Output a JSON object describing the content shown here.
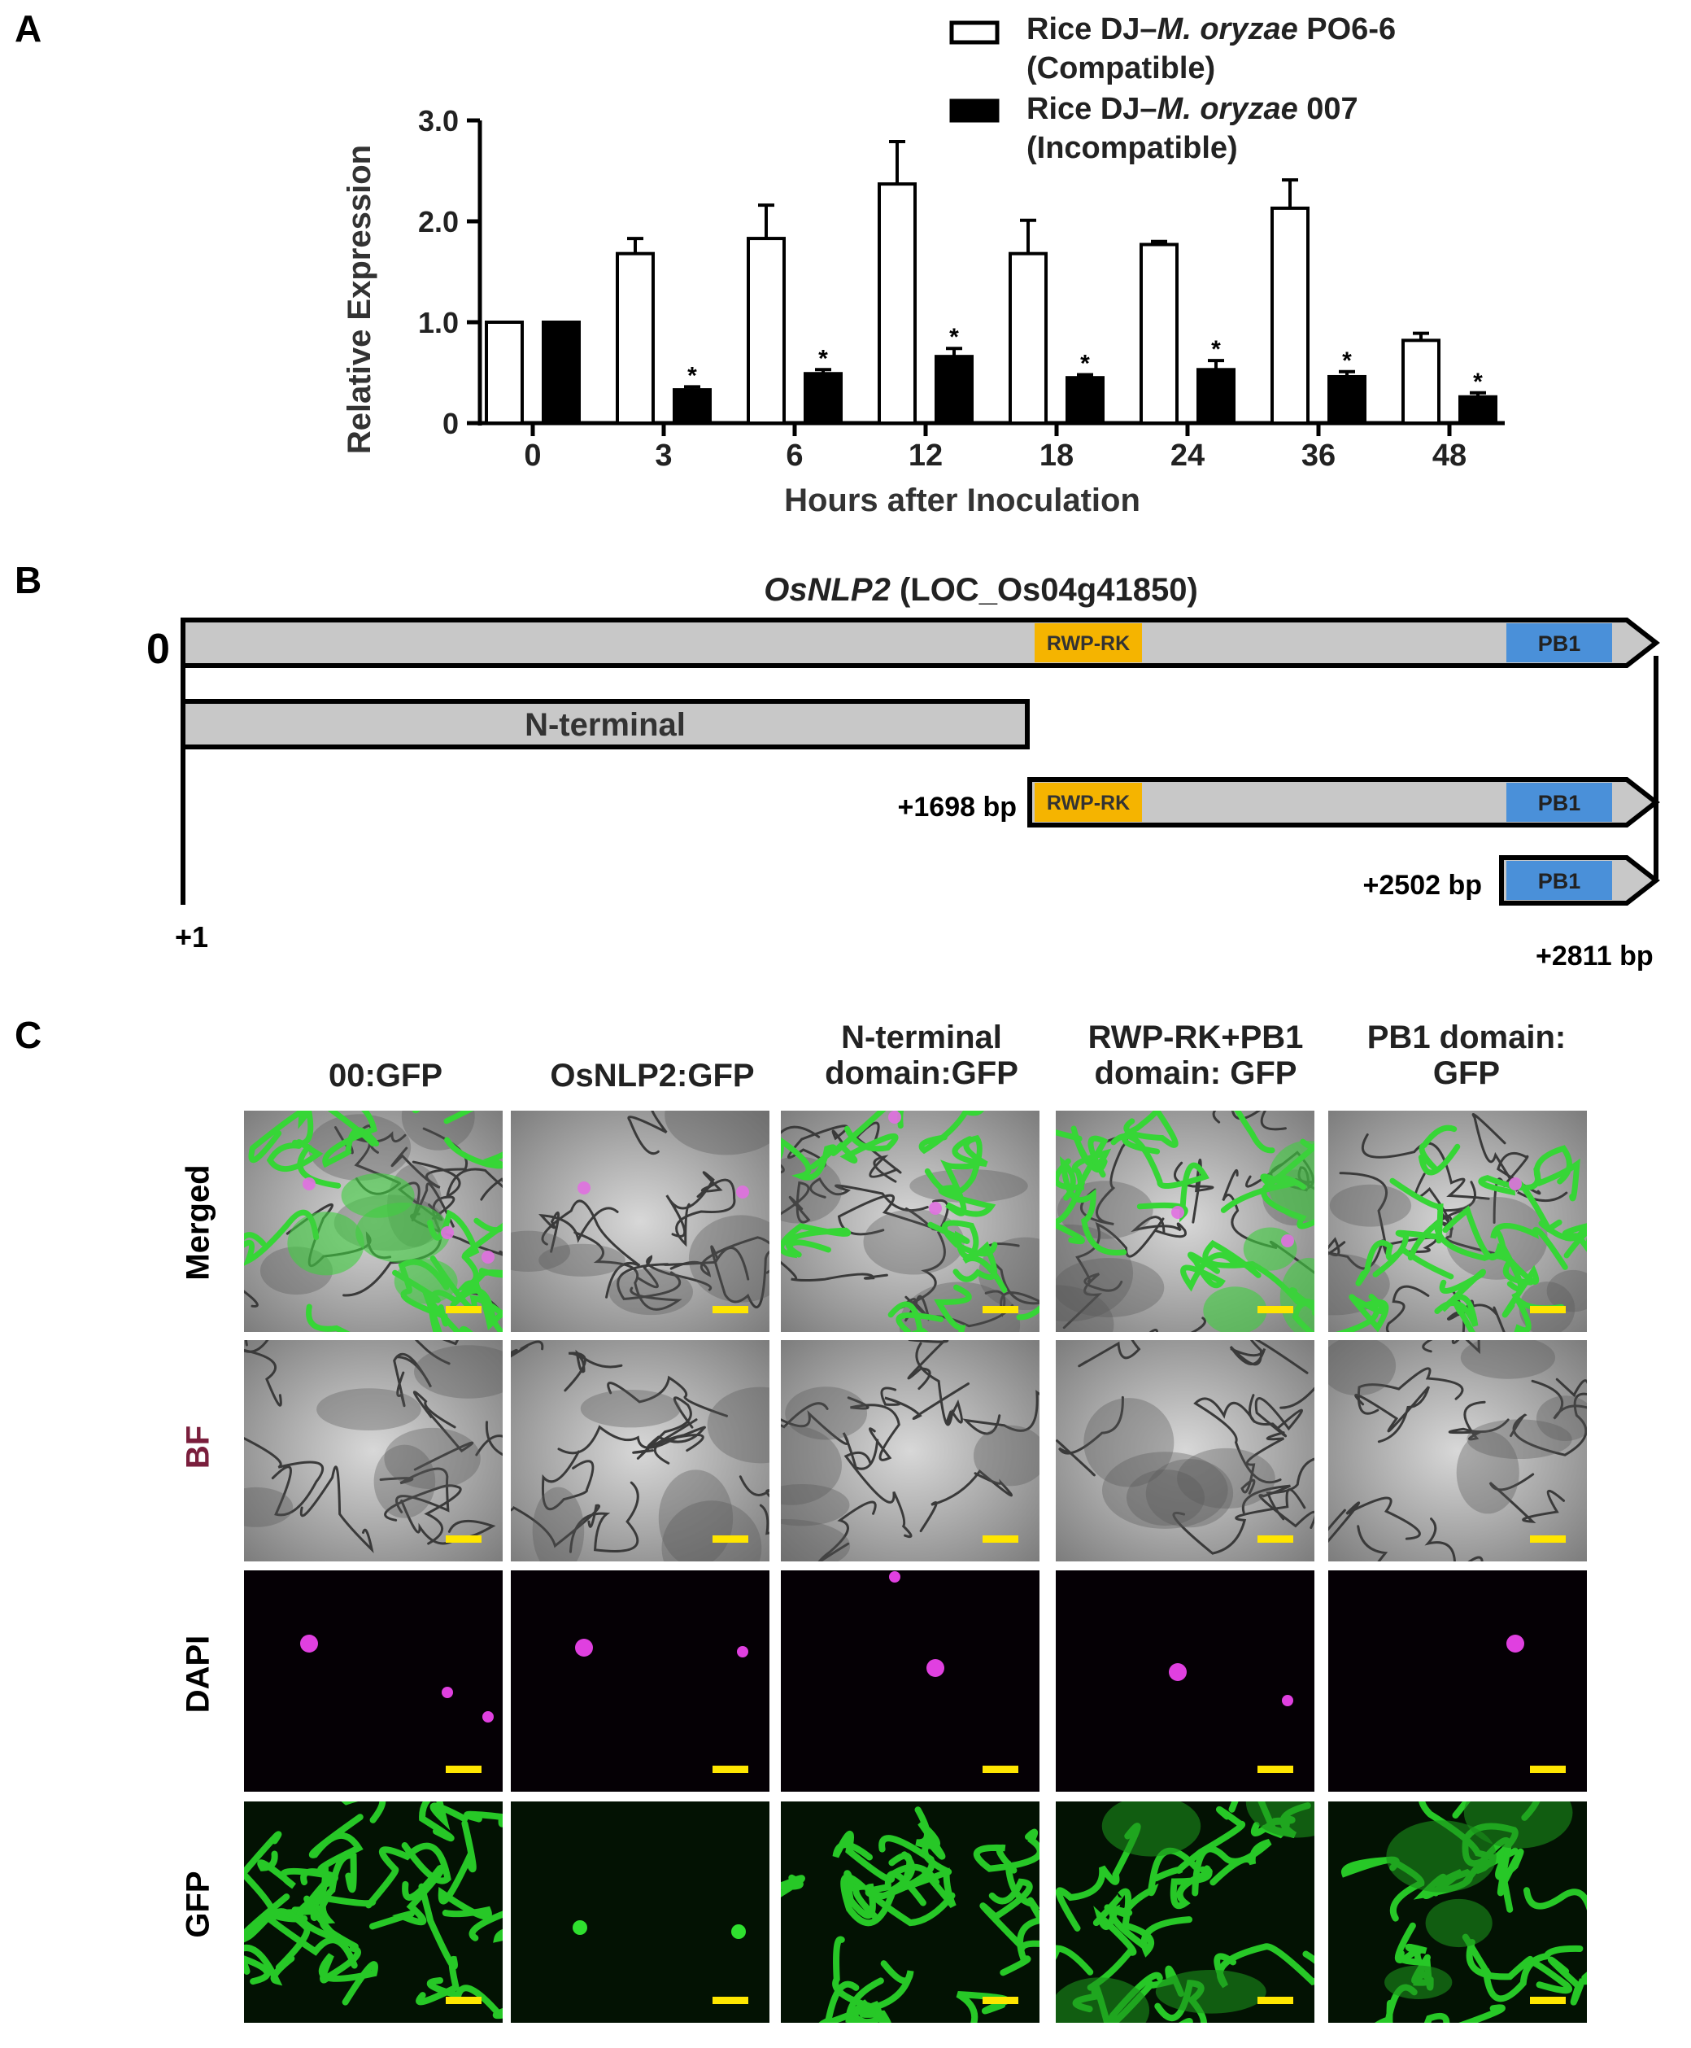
{
  "panel_a": {
    "letter": "A",
    "chart_data": {
      "type": "bar",
      "categories": [
        "0",
        "3",
        "6",
        "12",
        "18",
        "24",
        "36",
        "48"
      ],
      "series": [
        {
          "name": "Rice DJ–M. oryzae PO6-6 (Compatible)",
          "fill": "#ffffff",
          "values": [
            1.0,
            1.68,
            1.83,
            2.37,
            1.68,
            1.77,
            2.13,
            0.82
          ],
          "errors": [
            0,
            0.15,
            0.33,
            0.42,
            0.33,
            0.03,
            0.28,
            0.07
          ],
          "significant": [
            false,
            false,
            false,
            false,
            false,
            false,
            false,
            false
          ]
        },
        {
          "name": "Rice DJ–M. oryzae 007 (Incompatible)",
          "fill": "#000000",
          "values": [
            1.0,
            0.33,
            0.49,
            0.66,
            0.45,
            0.53,
            0.46,
            0.26
          ],
          "errors": [
            0,
            0.03,
            0.04,
            0.08,
            0.03,
            0.09,
            0.05,
            0.04
          ],
          "significant": [
            false,
            true,
            true,
            true,
            true,
            true,
            true,
            true
          ]
        }
      ],
      "xlabel": "Hours after Inoculation",
      "ylabel": "Relative Expression",
      "ylim": [
        0,
        3.0
      ],
      "yticks": [
        "0",
        "1.0",
        "2.0",
        "3.0"
      ],
      "significance_mark": "*",
      "legend": [
        {
          "line1_pre": "Rice DJ–",
          "line1_italic": "M. oryzae",
          "line1_post": " PO6-6",
          "line2": "(Compatible)"
        },
        {
          "line1_pre": "Rice DJ–",
          "line1_italic": "M. oryzae",
          "line1_post": " 007",
          "line2": "(Incompatible)"
        }
      ],
      "legend_position": "top-right"
    }
  },
  "panel_b": {
    "letter": "B",
    "gene_italic": "OsNLP2",
    "gene_locus": " (LOC_Os04g41850)",
    "zero_label": "0",
    "start_label": "+1",
    "end_label": "+2811 bp",
    "n_terminal_label": "N-terminal",
    "rwp_label": "RWP-RK",
    "pb1_label": "PB1",
    "pos_1698": "+1698 bp",
    "pos_2502": "+2502 bp",
    "colors": {
      "body": "#c8c8c8",
      "rwp": "#f5b400",
      "pb1": "#4a90d9"
    }
  },
  "panel_c": {
    "letter": "C",
    "columns": [
      {
        "line1": "00:GFP",
        "line2": ""
      },
      {
        "line1": "OsNLP2:GFP",
        "line2": ""
      },
      {
        "line1": "N-terminal",
        "line2": "domain:GFP"
      },
      {
        "line1": "RWP-RK+PB1",
        "line2": "domain: GFP"
      },
      {
        "line1": "PB1 domain:",
        "line2": "GFP"
      }
    ],
    "rows": [
      {
        "label": "Merged",
        "color": "#000000"
      },
      {
        "label": "BF",
        "color": "#7a1e3c"
      },
      {
        "label": "DAPI",
        "color": "#000000"
      },
      {
        "label": "GFP",
        "color": "#000000"
      }
    ],
    "scale_bar_color": "#ffe600"
  }
}
